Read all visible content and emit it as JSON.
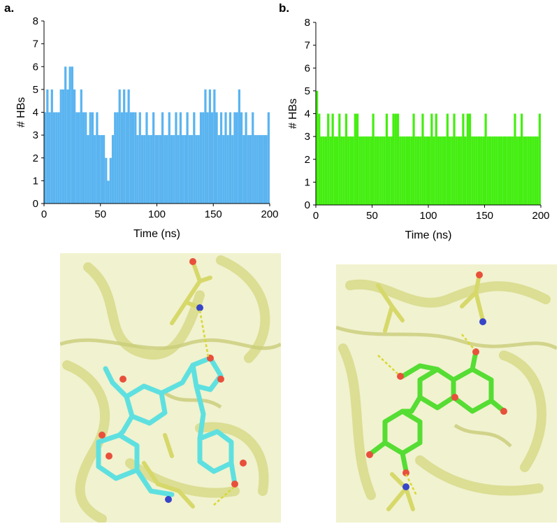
{
  "panels": [
    {
      "label": "a."
    },
    {
      "label": "b."
    }
  ],
  "chart_data": [
    {
      "type": "bar",
      "xlabel": "Time (ns)",
      "ylabel": "# HBs",
      "xlim": [
        0,
        200
      ],
      "ylim": [
        0,
        8
      ],
      "xticks": [
        0,
        50,
        100,
        150,
        200
      ],
      "yticks": [
        0,
        1,
        2,
        3,
        4,
        5,
        6,
        7,
        8
      ],
      "grid": false,
      "color": "#5ab4f0",
      "x": [
        0,
        2,
        4,
        6,
        8,
        10,
        12,
        14,
        16,
        18,
        20,
        22,
        24,
        26,
        28,
        30,
        32,
        34,
        36,
        38,
        40,
        42,
        44,
        46,
        48,
        50,
        52,
        54,
        56,
        58,
        60,
        62,
        64,
        66,
        68,
        70,
        72,
        74,
        76,
        78,
        80,
        82,
        84,
        86,
        88,
        90,
        92,
        94,
        96,
        98,
        100,
        102,
        104,
        106,
        108,
        110,
        112,
        114,
        116,
        118,
        120,
        122,
        124,
        126,
        128,
        130,
        132,
        134,
        136,
        138,
        140,
        142,
        144,
        146,
        148,
        150,
        152,
        154,
        156,
        158,
        160,
        162,
        164,
        166,
        168,
        170,
        172,
        174,
        176,
        178,
        180,
        182,
        184,
        186,
        188,
        190,
        192,
        194,
        196,
        198
      ],
      "values": [
        4,
        5,
        4,
        5,
        4,
        4,
        4,
        5,
        5,
        6,
        5,
        6,
        6,
        5,
        4,
        4,
        5,
        4,
        4,
        3,
        4,
        4,
        3,
        4,
        3,
        3,
        3,
        2,
        1,
        2,
        3,
        4,
        4,
        5,
        4,
        5,
        4,
        5,
        4,
        4,
        4,
        3,
        4,
        3,
        3,
        4,
        3,
        3,
        4,
        3,
        3,
        3,
        4,
        3,
        3,
        4,
        3,
        3,
        4,
        3,
        4,
        3,
        3,
        4,
        3,
        3,
        4,
        3,
        3,
        4,
        4,
        5,
        4,
        5,
        4,
        5,
        4,
        3,
        4,
        3,
        4,
        3,
        4,
        3,
        4,
        4,
        5,
        4,
        3,
        4,
        3,
        3,
        4,
        3,
        3,
        3,
        3,
        3,
        3,
        4
      ]
    },
    {
      "type": "bar",
      "xlabel": "Time (ns)",
      "ylabel": "# HBs",
      "xlim": [
        0,
        200
      ],
      "ylim": [
        0,
        8
      ],
      "xticks": [
        0,
        50,
        100,
        150,
        200
      ],
      "yticks": [
        0,
        1,
        2,
        3,
        4,
        5,
        6,
        7,
        8
      ],
      "grid": false,
      "color": "#44ee11",
      "x": [
        0,
        2,
        4,
        6,
        8,
        10,
        12,
        14,
        16,
        18,
        20,
        22,
        24,
        26,
        28,
        30,
        32,
        34,
        36,
        38,
        40,
        42,
        44,
        46,
        48,
        50,
        52,
        54,
        56,
        58,
        60,
        62,
        64,
        66,
        68,
        70,
        72,
        74,
        76,
        78,
        80,
        82,
        84,
        86,
        88,
        90,
        92,
        94,
        96,
        98,
        100,
        102,
        104,
        106,
        108,
        110,
        112,
        114,
        116,
        118,
        120,
        122,
        124,
        126,
        128,
        130,
        132,
        134,
        136,
        138,
        140,
        142,
        144,
        146,
        148,
        150,
        152,
        154,
        156,
        158,
        160,
        162,
        164,
        166,
        168,
        170,
        172,
        174,
        176,
        178,
        180,
        182,
        184,
        186,
        188,
        190,
        192,
        194,
        196,
        198
      ],
      "values": [
        5,
        4,
        3,
        3,
        3,
        4,
        3,
        4,
        3,
        3,
        4,
        3,
        3,
        4,
        3,
        3,
        3,
        4,
        4,
        3,
        3,
        3,
        3,
        3,
        3,
        4,
        3,
        3,
        3,
        3,
        3,
        4,
        3,
        3,
        4,
        4,
        4,
        3,
        3,
        3,
        3,
        3,
        3,
        4,
        3,
        3,
        3,
        4,
        3,
        3,
        3,
        4,
        3,
        4,
        3,
        3,
        3,
        3,
        4,
        3,
        3,
        4,
        3,
        3,
        3,
        4,
        3,
        4,
        4,
        3,
        3,
        3,
        3,
        3,
        3,
        4,
        3,
        3,
        3,
        3,
        3,
        3,
        3,
        3,
        3,
        3,
        3,
        3,
        4,
        3,
        3,
        4,
        3,
        3,
        3,
        3,
        3,
        3,
        3,
        4
      ]
    }
  ],
  "structures": [
    {
      "ligand_color": "#5fe0e0",
      "protein_color": "#e8eba6",
      "background": "#f1f2cf"
    },
    {
      "ligand_color": "#55dd33",
      "protein_color": "#e8eba6",
      "background": "#f1f2cf"
    }
  ]
}
